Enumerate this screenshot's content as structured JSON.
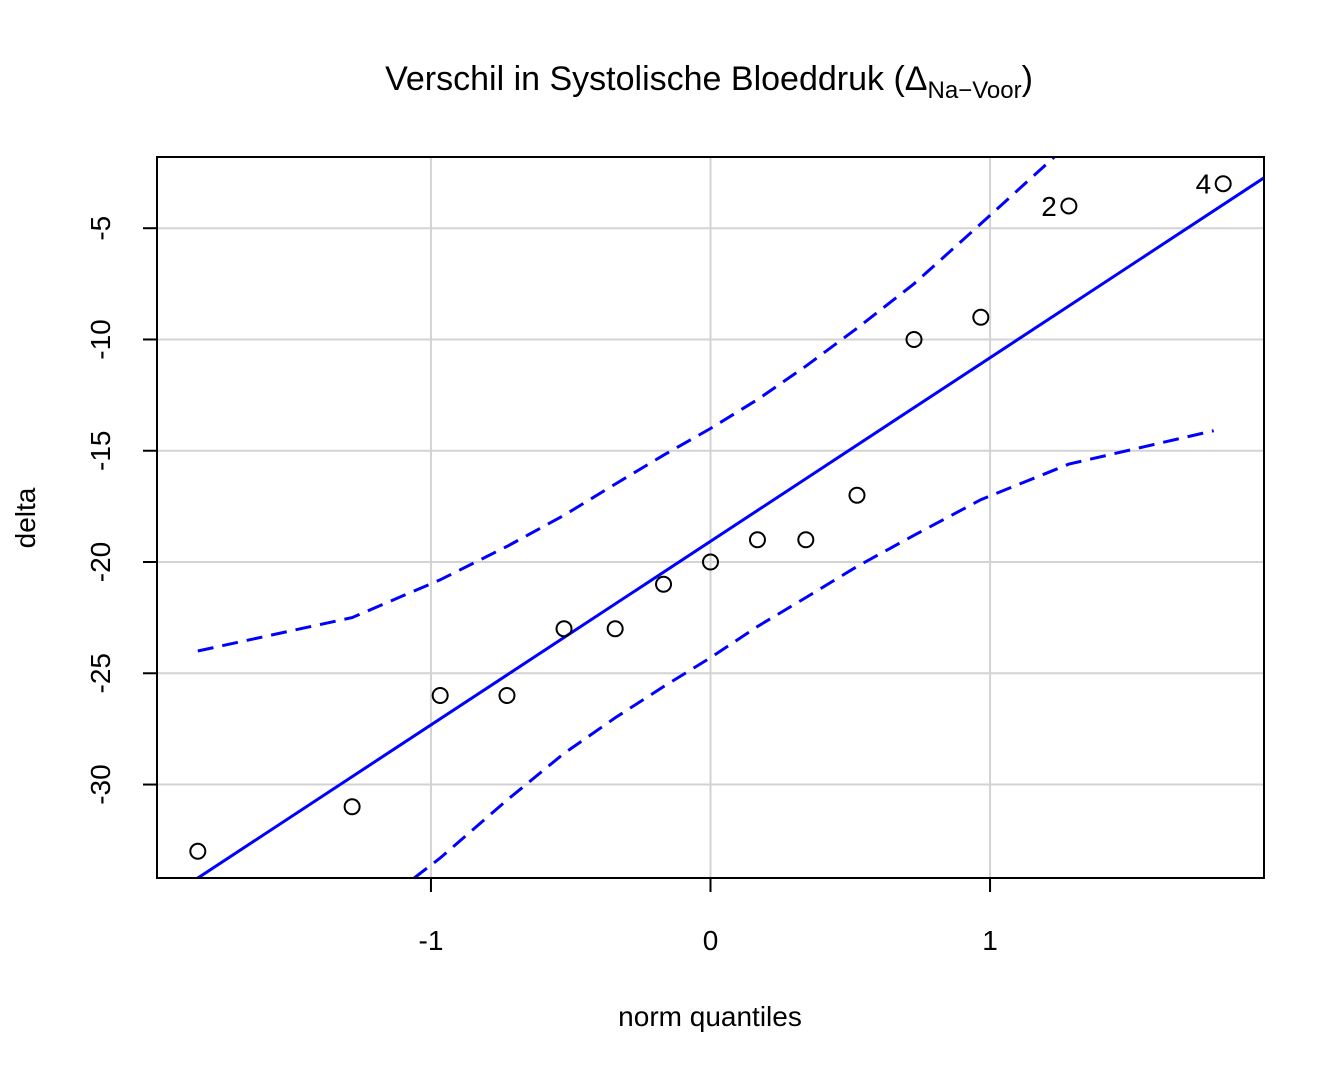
{
  "chart_data": {
    "type": "scatter",
    "title_main": "Verschil in Systolische Bloeddruk (",
    "title_delta": "Δ",
    "title_sub": "Na−Voor",
    "title_close": ")",
    "xlabel": "norm quantiles",
    "ylabel": "delta",
    "xlim": [
      -1.98,
      1.98
    ],
    "ylim": [
      -34.2,
      -1.8
    ],
    "xticks": [
      -1,
      0,
      1
    ],
    "xtick_labels": [
      "-1",
      "0",
      "1"
    ],
    "yticks": [
      -5,
      -10,
      -15,
      -20,
      -25,
      -30
    ],
    "ytick_labels": [
      "-5",
      "-10",
      "-15",
      "-20",
      "-25",
      "-30"
    ],
    "grid": true,
    "points": {
      "x": [
        -1.834,
        -1.282,
        -0.967,
        -0.728,
        -0.524,
        -0.341,
        -0.168,
        0.0,
        0.168,
        0.341,
        0.524,
        0.728,
        0.967,
        1.282,
        1.834
      ],
      "y": [
        -33,
        -31,
        -26,
        -26,
        -23,
        -23,
        -21,
        -20,
        -19,
        -19,
        -17,
        -10,
        -9,
        -4,
        -3
      ]
    },
    "point_labels": [
      {
        "index": 13,
        "text": "2"
      },
      {
        "index": 14,
        "text": "4"
      }
    ],
    "reference_line": {
      "intercept": -19.07,
      "slope": 8.25
    },
    "confidence_band": {
      "upper": {
        "x": [
          -1.834,
          -1.282,
          -0.967,
          -0.728,
          -0.524,
          -0.341,
          -0.168,
          0.0,
          0.168,
          0.341,
          0.524,
          0.728,
          0.967,
          1.23
        ],
        "y": [
          -24.0,
          -22.5,
          -20.8,
          -19.3,
          -17.9,
          -16.5,
          -15.2,
          -14.0,
          -12.7,
          -11.2,
          -9.5,
          -7.5,
          -4.8,
          -1.8
        ]
      },
      "lower": {
        "x": [
          -1.06,
          -0.967,
          -0.728,
          -0.524,
          -0.341,
          -0.168,
          0.0,
          0.168,
          0.341,
          0.524,
          0.728,
          0.967,
          1.282,
          1.8
        ],
        "y": [
          -34.2,
          -33.3,
          -30.7,
          -28.6,
          -27.0,
          -25.6,
          -24.3,
          -22.9,
          -21.6,
          -20.2,
          -18.8,
          -17.2,
          -15.6,
          -14.1
        ]
      }
    },
    "colors": {
      "reference_line": "#0000ff",
      "band": "#0000ff",
      "points": "#000000",
      "grid": "#d3d3d3",
      "frame": "#000000"
    }
  }
}
